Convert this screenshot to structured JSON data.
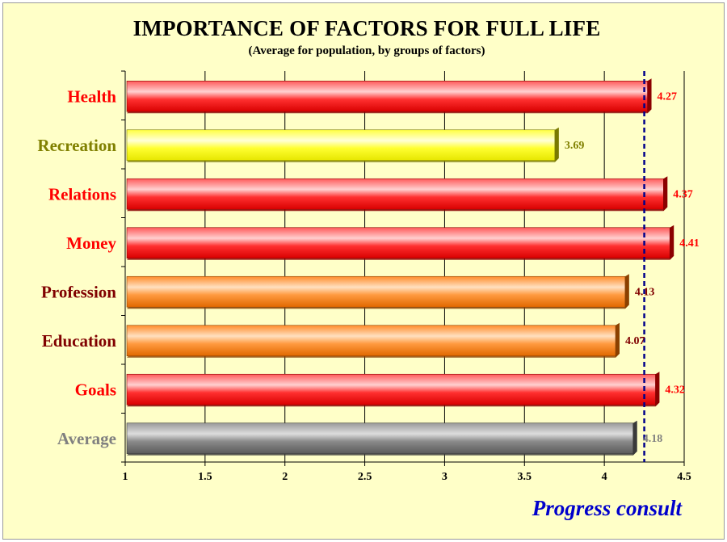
{
  "colors": {
    "background": "#ffffc8",
    "red": "#ff2a2a",
    "yellow": "#ffff33",
    "orange": "#ff8a2a",
    "gray": "#8a8a8a",
    "average_line": "#00008b"
  },
  "chart_data": {
    "type": "bar",
    "orientation": "horizontal",
    "title": "IMPORTANCE OF FACTORS FOR FULL LIFE",
    "subtitle": "(Average for population, by groups of factors)",
    "categories": [
      "Health",
      "Recreation",
      "Relations",
      "Money",
      "Profession",
      "Education",
      "Goals",
      "Average"
    ],
    "values": [
      4.27,
      3.69,
      4.37,
      4.41,
      4.13,
      4.07,
      4.32,
      4.18
    ],
    "value_labels": [
      "4.27",
      "3.69",
      "4.37",
      "4.41",
      "4.13",
      "4.07",
      "4.32",
      "4.18"
    ],
    "bar_colors": [
      "red",
      "yellow",
      "red",
      "red",
      "orange",
      "orange",
      "red",
      "gray"
    ],
    "label_colors": [
      "#ff0000",
      "#808000",
      "#ff0000",
      "#ff0000",
      "#800000",
      "#800000",
      "#ff0000",
      "#808080"
    ],
    "xlim": [
      1,
      4.5
    ],
    "xticks": [
      1,
      1.5,
      2,
      2.5,
      3,
      3.5,
      4,
      4.5
    ],
    "xtick_labels": [
      "1",
      "1.5",
      "2",
      "2.5",
      "3",
      "3.5",
      "4",
      "4.5"
    ],
    "reference_line": 4.25,
    "grid": true,
    "legend": "none"
  },
  "watermark": "Progress consult"
}
